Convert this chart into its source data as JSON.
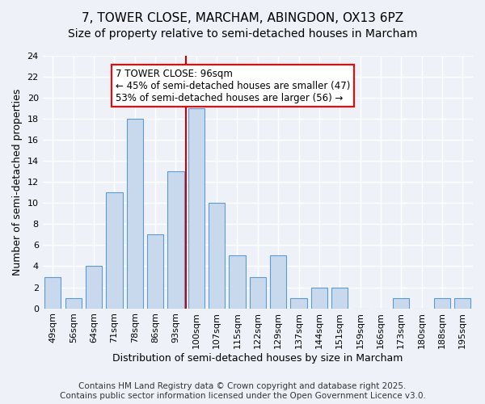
{
  "title1": "7, TOWER CLOSE, MARCHAM, ABINGDON, OX13 6PZ",
  "title2": "Size of property relative to semi-detached houses in Marcham",
  "xlabel": "Distribution of semi-detached houses by size in Marcham",
  "ylabel": "Number of semi-detached properties",
  "categories": [
    "49sqm",
    "56sqm",
    "64sqm",
    "71sqm",
    "78sqm",
    "86sqm",
    "93sqm",
    "100sqm",
    "107sqm",
    "115sqm",
    "122sqm",
    "129sqm",
    "137sqm",
    "144sqm",
    "151sqm",
    "159sqm",
    "166sqm",
    "173sqm",
    "180sqm",
    "188sqm",
    "195sqm"
  ],
  "values": [
    3,
    1,
    4,
    11,
    18,
    7,
    13,
    19,
    10,
    5,
    3,
    5,
    1,
    2,
    2,
    0,
    0,
    1,
    0,
    1,
    1
  ],
  "bar_color": "#c9d9ed",
  "bar_edgecolor": "#5b9bd5",
  "bg_color": "#eef2f8",
  "grid_color": "#ffffff",
  "vline_x_index": 7,
  "vline_color": "#cc0000",
  "box_text_line1": "7 TOWER CLOSE: 96sqm",
  "box_text_line2": "← 45% of semi-detached houses are smaller (47)",
  "box_text_line3": "53% of semi-detached houses are larger (56) →",
  "ylim": [
    0,
    24
  ],
  "yticks": [
    0,
    2,
    4,
    6,
    8,
    10,
    12,
    14,
    16,
    18,
    20,
    22,
    24
  ],
  "footer": "Contains HM Land Registry data © Crown copyright and database right 2025.\nContains public sector information licensed under the Open Government Licence v3.0.",
  "footer_fontsize": 7.5,
  "title1_fontsize": 11,
  "title2_fontsize": 10
}
